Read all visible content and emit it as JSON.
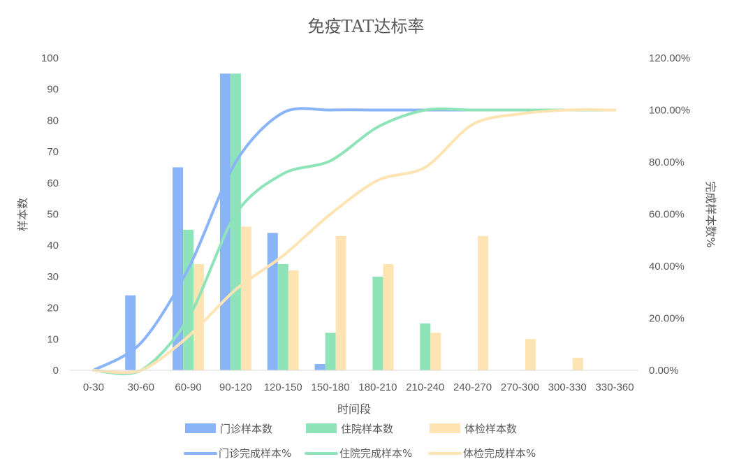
{
  "chart_data": {
    "type": "bar",
    "title": "免疫TAT达标率",
    "xlabel": "时间段",
    "ylabel": "样本数",
    "y2label": "完成样本数%",
    "ylim": [
      0,
      100
    ],
    "yticks": [
      "0",
      "10",
      "20",
      "30",
      "40",
      "50",
      "60",
      "70",
      "80",
      "90",
      "100"
    ],
    "y2lim": [
      0,
      1.2
    ],
    "y2ticks": [
      "0.00%",
      "20.00%",
      "40.00%",
      "60.00%",
      "80.00%",
      "100.00%",
      "120.00%"
    ],
    "categories": [
      "0-30",
      "30-60",
      "60-90",
      "90-120",
      "120-150",
      "150-180",
      "180-210",
      "210-240",
      "240-270",
      "270-300",
      "300-330",
      "330-360"
    ],
    "bar_series": [
      {
        "name": "门诊样本数",
        "color": "#8AB4F8",
        "values": [
          0,
          24,
          65,
          95,
          44,
          2,
          0,
          0,
          0,
          0,
          0,
          0
        ]
      },
      {
        "name": "住院样本数",
        "color": "#8EE4B8",
        "values": [
          0,
          0,
          45,
          95,
          34,
          12,
          30,
          15,
          0,
          0,
          0,
          0
        ]
      },
      {
        "name": "体检样本数",
        "color": "#FDE4B2",
        "values": [
          0,
          0,
          34,
          46,
          32,
          43,
          34,
          12,
          43,
          10,
          4,
          0
        ]
      }
    ],
    "line_series": [
      {
        "name": "门诊完成样本%",
        "color": "#8AB4F8",
        "values": [
          0.0,
          0.105,
          0.39,
          0.8,
          0.99,
          1.0,
          1.0,
          1.0,
          1.0,
          1.0,
          1.0,
          1.0
        ]
      },
      {
        "name": "住院完成样本%",
        "color": "#8EE4B8",
        "values": [
          0.0,
          0.0,
          0.2,
          0.6,
          0.755,
          0.805,
          0.935,
          1.0,
          1.0,
          1.0,
          1.0,
          1.0
        ]
      },
      {
        "name": "体检完成样本%",
        "color": "#FDE4B2",
        "values": [
          0.0,
          0.0,
          0.13,
          0.31,
          0.44,
          0.6,
          0.73,
          0.78,
          0.945,
          0.985,
          1.0,
          1.0
        ]
      }
    ],
    "grid": false,
    "legend_position": "bottom"
  }
}
